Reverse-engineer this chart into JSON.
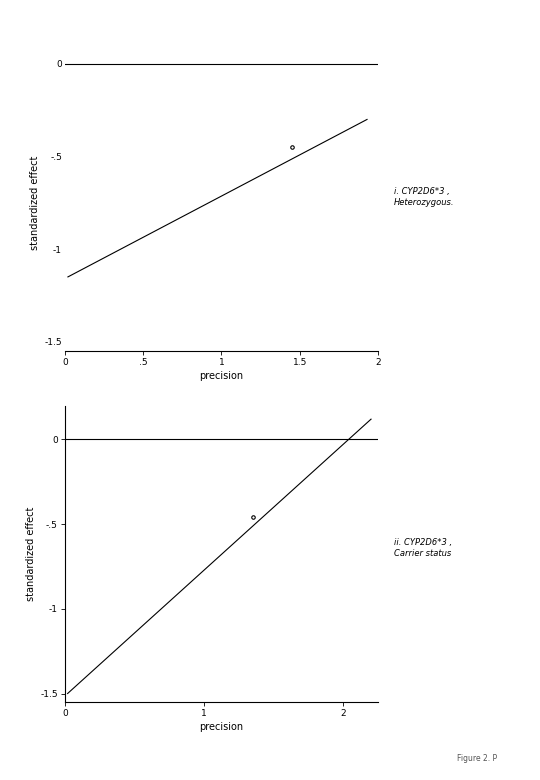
{
  "plot1": {
    "line_x": [
      0.02,
      1.93
    ],
    "line_y": [
      -1.15,
      -0.3
    ],
    "point_x": 1.45,
    "point_y": -0.45,
    "xlim": [
      0,
      2.0
    ],
    "ylim": [
      -1.55,
      0.05
    ],
    "xticks": [
      0,
      0.5,
      1,
      1.5,
      2
    ],
    "xtick_labels": [
      "0",
      ".5",
      "1",
      "1.5",
      "2"
    ],
    "yticks": [
      -1.5,
      -1,
      -0.5,
      0
    ],
    "ytick_labels": [
      "-1.5",
      "-1",
      "-.5",
      "0"
    ],
    "xlabel": "precision",
    "ylabel": "standardized effect",
    "annotation": "i. CYP2D6*3 ,\nHeterozygous.",
    "has_left_spine": false,
    "hline_y": 0
  },
  "plot2": {
    "line_x": [
      0.02,
      2.2
    ],
    "line_y": [
      -1.5,
      0.12
    ],
    "point_x": 1.35,
    "point_y": -0.46,
    "xlim": [
      0,
      2.25
    ],
    "ylim": [
      -1.55,
      0.2
    ],
    "xticks": [
      0,
      1,
      2
    ],
    "xtick_labels": [
      "0",
      "1",
      "2"
    ],
    "yticks": [
      -1.5,
      -1,
      -0.5,
      0
    ],
    "ytick_labels": [
      "-1.5",
      "-1",
      "-.5",
      "0"
    ],
    "xlabel": "precision",
    "ylabel": "standardized effect",
    "annotation": "ii. CYP2D6*3 ,\nCarrier status",
    "has_left_spine": true,
    "hline_y": 0
  },
  "figure_note": "Figure 2. P",
  "bg_color": "#ffffff",
  "line_color": "#000000",
  "point_color": "#000000",
  "annotation_font_size": 6.0,
  "label_font_size": 7,
  "tick_font_size": 6.5
}
